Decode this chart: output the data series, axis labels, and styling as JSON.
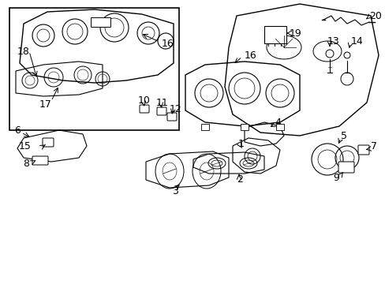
{
  "title": "",
  "background_color": "#ffffff",
  "line_color": "#000000",
  "label_fontsize": 9,
  "fig_width": 4.89,
  "fig_height": 3.6,
  "dpi": 100
}
